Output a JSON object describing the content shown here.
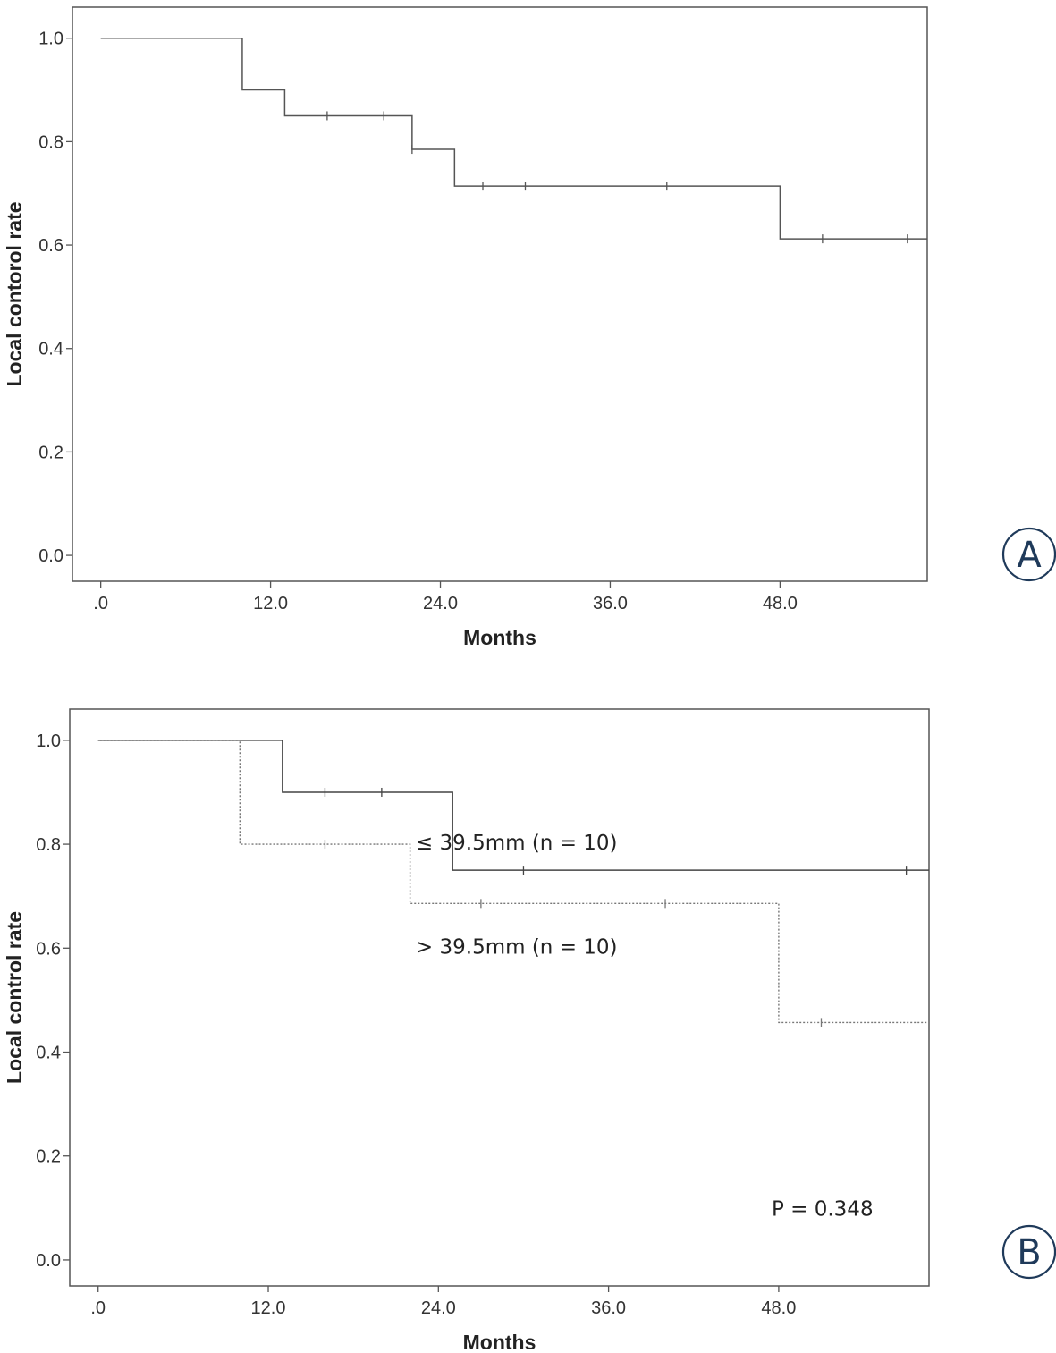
{
  "chart_data": [
    {
      "type": "line",
      "panel_label": "A",
      "xlabel": "Months",
      "ylabel": "Local contorol rate",
      "xlim": [
        -2,
        58.4
      ],
      "ylim": [
        -0.05,
        1.06
      ],
      "xticks": [
        ".0",
        "12.0",
        "24.0",
        "36.0",
        "48.0"
      ],
      "xtick_values": [
        0,
        12,
        24,
        36,
        48
      ],
      "yticks": [
        "0.0",
        "0.2",
        "0.4",
        "0.6",
        "0.8",
        "1.0"
      ],
      "ytick_values": [
        0,
        0.2,
        0.4,
        0.6,
        0.8,
        1.0
      ],
      "grid": false,
      "series": [
        {
          "style": "solid",
          "color": "#555555",
          "steps": [
            [
              0,
              1.0
            ],
            [
              10,
              0.9
            ],
            [
              13,
              0.85
            ],
            [
              22,
              0.785
            ],
            [
              25,
              0.714
            ],
            [
              48,
              0.612
            ],
            [
              58.4,
              0.612
            ]
          ],
          "censored": [
            [
              16,
              0.85
            ],
            [
              20,
              0.85
            ],
            [
              22,
              0.785
            ],
            [
              27,
              0.714
            ],
            [
              30,
              0.714
            ],
            [
              40,
              0.714
            ],
            [
              51,
              0.612
            ],
            [
              57,
              0.612
            ]
          ]
        }
      ],
      "annotations": []
    },
    {
      "type": "line",
      "panel_label": "B",
      "xlabel": "Months",
      "ylabel": "Local control rate",
      "xlim": [
        -2,
        58.6
      ],
      "ylim": [
        -0.05,
        1.06
      ],
      "xticks": [
        ".0",
        "12.0",
        "24.0",
        "36.0",
        "48.0"
      ],
      "xtick_values": [
        0,
        12,
        24,
        36,
        48
      ],
      "yticks": [
        "0.0",
        "0.2",
        "0.4",
        "0.6",
        "0.8",
        "1.0"
      ],
      "ytick_values": [
        0,
        0.2,
        0.4,
        0.6,
        0.8,
        1.0
      ],
      "grid": false,
      "series": [
        {
          "name": "≤ 39.5mm (n = 10)",
          "style": "solid",
          "color": "#444444",
          "steps": [
            [
              0,
              1.0
            ],
            [
              13,
              0.9
            ],
            [
              25,
              0.75
            ],
            [
              58.6,
              0.75
            ]
          ],
          "censored": [
            [
              16,
              0.9
            ],
            [
              20,
              0.9
            ],
            [
              30,
              0.75
            ],
            [
              57,
              0.75
            ]
          ]
        },
        {
          "name": "> 39.5mm (n = 10)",
          "style": "dotted",
          "color": "#777777",
          "steps": [
            [
              0,
              1.0
            ],
            [
              10,
              0.8
            ],
            [
              22,
              0.686
            ],
            [
              48,
              0.457
            ],
            [
              58.6,
              0.457
            ]
          ],
          "censored": [
            [
              16,
              0.8
            ],
            [
              27,
              0.686
            ],
            [
              40,
              0.686
            ],
            [
              51,
              0.457
            ]
          ]
        }
      ],
      "annotations": [
        {
          "text": "P = 0.348",
          "x": 47.5,
          "y": 0.085
        }
      ]
    }
  ]
}
